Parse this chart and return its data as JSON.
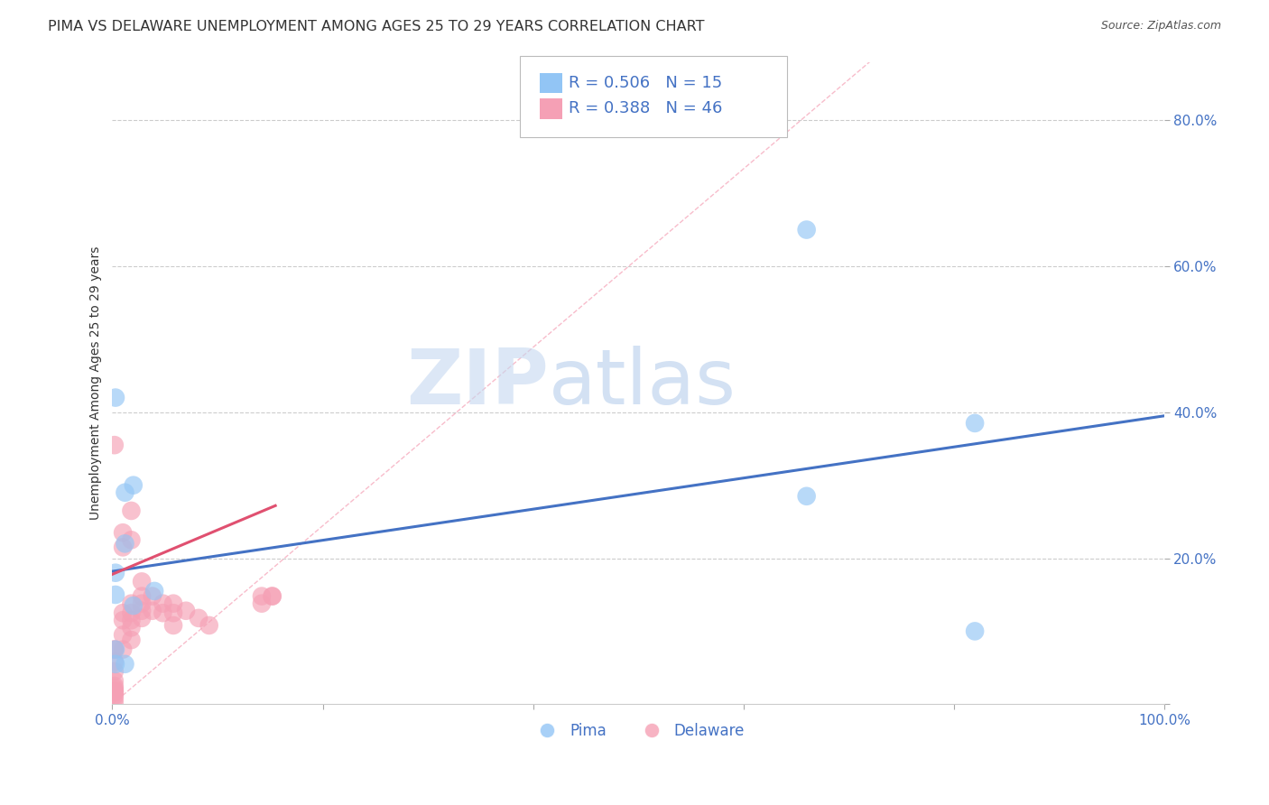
{
  "title": "PIMA VS DELAWARE UNEMPLOYMENT AMONG AGES 25 TO 29 YEARS CORRELATION CHART",
  "source": "Source: ZipAtlas.com",
  "ylabel": "Unemployment Among Ages 25 to 29 years",
  "xlim": [
    0,
    1.0
  ],
  "ylim": [
    0,
    0.88
  ],
  "pima_color": "#92C5F5",
  "delaware_color": "#F5A0B5",
  "pima_line_color": "#4472C4",
  "delaware_line_color": "#E05070",
  "diagonal_color": "#F5A0B5",
  "pima_R": 0.506,
  "pima_N": 15,
  "delaware_R": 0.388,
  "delaware_N": 46,
  "legend_text_color": "#4472C4",
  "tick_color": "#4472C4",
  "watermark_zip": "ZIP",
  "watermark_atlas": "atlas",
  "grid_color": "#cccccc",
  "background_color": "#ffffff",
  "title_fontsize": 11.5,
  "source_fontsize": 9,
  "axis_label_fontsize": 10,
  "tick_fontsize": 11,
  "legend_fontsize": 13,
  "pima_points": [
    [
      0.003,
      0.42
    ],
    [
      0.003,
      0.15
    ],
    [
      0.012,
      0.29
    ],
    [
      0.012,
      0.22
    ],
    [
      0.02,
      0.3
    ],
    [
      0.66,
      0.65
    ],
    [
      0.66,
      0.285
    ],
    [
      0.82,
      0.385
    ],
    [
      0.82,
      0.1
    ],
    [
      0.04,
      0.155
    ],
    [
      0.02,
      0.135
    ],
    [
      0.012,
      0.055
    ],
    [
      0.003,
      0.18
    ],
    [
      0.003,
      0.055
    ],
    [
      0.003,
      0.075
    ]
  ],
  "delaware_points": [
    [
      0.002,
      0.355
    ],
    [
      0.002,
      0.075
    ],
    [
      0.002,
      0.075
    ],
    [
      0.002,
      0.058
    ],
    [
      0.002,
      0.045
    ],
    [
      0.002,
      0.032
    ],
    [
      0.002,
      0.025
    ],
    [
      0.002,
      0.022
    ],
    [
      0.002,
      0.018
    ],
    [
      0.002,
      0.016
    ],
    [
      0.002,
      0.012
    ],
    [
      0.002,
      0.008
    ],
    [
      0.01,
      0.235
    ],
    [
      0.01,
      0.215
    ],
    [
      0.01,
      0.125
    ],
    [
      0.01,
      0.115
    ],
    [
      0.01,
      0.095
    ],
    [
      0.01,
      0.075
    ],
    [
      0.018,
      0.265
    ],
    [
      0.018,
      0.225
    ],
    [
      0.018,
      0.138
    ],
    [
      0.018,
      0.125
    ],
    [
      0.018,
      0.115
    ],
    [
      0.018,
      0.105
    ],
    [
      0.018,
      0.088
    ],
    [
      0.028,
      0.168
    ],
    [
      0.028,
      0.148
    ],
    [
      0.028,
      0.138
    ],
    [
      0.028,
      0.128
    ],
    [
      0.028,
      0.118
    ],
    [
      0.038,
      0.148
    ],
    [
      0.038,
      0.128
    ],
    [
      0.048,
      0.138
    ],
    [
      0.048,
      0.125
    ],
    [
      0.058,
      0.138
    ],
    [
      0.058,
      0.125
    ],
    [
      0.058,
      0.108
    ],
    [
      0.07,
      0.128
    ],
    [
      0.082,
      0.118
    ],
    [
      0.092,
      0.108
    ],
    [
      0.142,
      0.148
    ],
    [
      0.142,
      0.138
    ],
    [
      0.152,
      0.148
    ],
    [
      0.152,
      0.148
    ],
    [
      0.002,
      0.002
    ],
    [
      0.002,
      0.018
    ]
  ],
  "pima_line": [
    [
      0.0,
      0.182
    ],
    [
      1.0,
      0.395
    ]
  ],
  "delaware_line": [
    [
      0.0,
      0.178
    ],
    [
      0.155,
      0.272
    ]
  ],
  "diagonal_line": [
    [
      0.0,
      0.0
    ],
    [
      0.72,
      0.88
    ]
  ]
}
